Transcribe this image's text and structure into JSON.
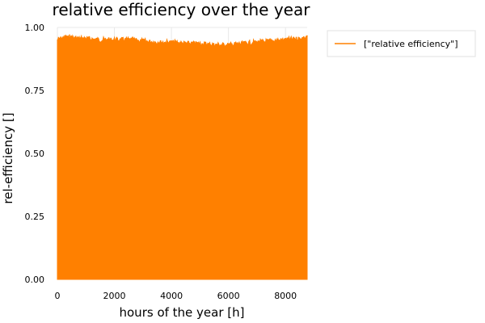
{
  "chart_data": {
    "type": "line",
    "title": "relative efficiency over the year",
    "xlabel": "hours of the year [h]",
    "ylabel": "rel-efficiency []",
    "xlim": [
      0,
      8760
    ],
    "ylim": [
      0,
      1
    ],
    "xticks": [
      0,
      2000,
      4000,
      6000,
      8000
    ],
    "xtick_labels": [
      "0",
      "2000",
      "4000",
      "6000",
      "8000"
    ],
    "yticks": [
      0,
      0.25,
      0.5,
      0.75,
      1.0
    ],
    "ytick_labels": [
      "0.00",
      "0.25",
      "0.50",
      "0.75",
      "1.00"
    ],
    "grid": true,
    "legend_position": "top-right outside",
    "series": [
      {
        "name": "[\"relative efficiency\"]",
        "color": "#ff8000",
        "hours": [
          0,
          250,
          500,
          750,
          1000,
          1500,
          2000,
          2500,
          3000,
          3500,
          4000,
          4500,
          5000,
          5500,
          6000,
          6500,
          7000,
          7500,
          8000,
          8500,
          8760
        ],
        "upper_values": [
          0.96,
          0.97,
          0.97,
          0.965,
          0.965,
          0.96,
          0.96,
          0.96,
          0.955,
          0.95,
          0.95,
          0.945,
          0.945,
          0.94,
          0.94,
          0.945,
          0.95,
          0.955,
          0.96,
          0.965,
          0.97
        ],
        "lower_values": [
          0.0,
          0.0,
          0.0,
          0.0,
          0.0,
          0.0,
          0.0,
          0.0,
          0.0,
          0.0,
          0.0,
          0.0,
          0.0,
          0.0,
          0.0,
          0.0,
          0.0,
          0.0,
          0.0,
          0.0,
          0.0
        ]
      }
    ]
  }
}
